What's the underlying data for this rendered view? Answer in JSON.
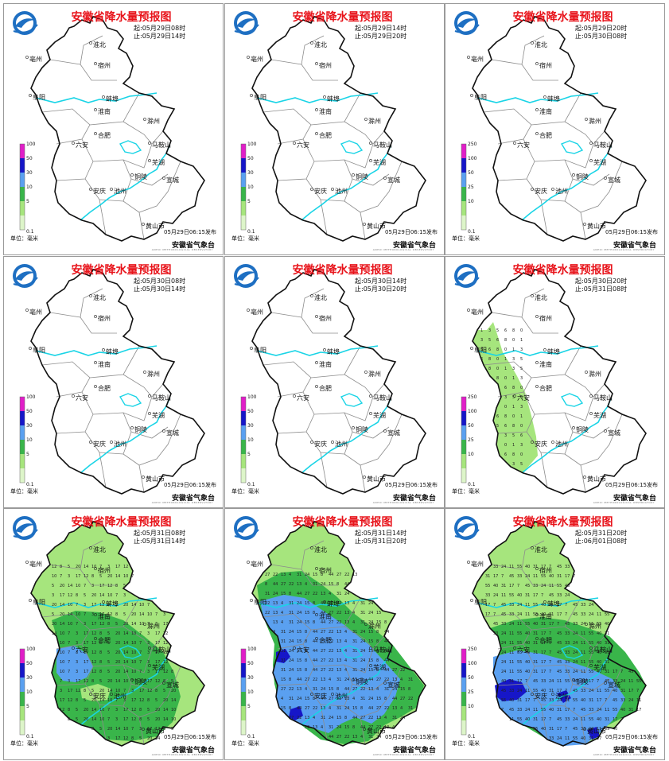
{
  "common": {
    "title": "安徽省降水量预报图",
    "start_prefix": "起:",
    "end_prefix": "止:",
    "issue": "05月29日06:15发布",
    "agency": "安徽省气象台",
    "agency_sub": "ANHUI METEOROLOGICAL OBSERVATORY",
    "unit": "单位：毫米",
    "cities": [
      "淮北",
      "亳州",
      "宿州",
      "阜阳",
      "蚌埠",
      "淮南",
      "滁州",
      "六安",
      "合肥",
      "马鞍山",
      "芜湖",
      "铜陵",
      "宣城",
      "安庆",
      "池州",
      "黄山市"
    ],
    "colors": {
      "title": "#e8141b",
      "river": "#19d4e6",
      "border": "#111111",
      "light_green": "#a6e57d",
      "green": "#39b54a",
      "blue": "#5aa0f0",
      "dark_blue": "#1616c8",
      "magenta": "#e01ec8"
    }
  },
  "panels": [
    {
      "start": "05月29日08时",
      "end": "05月29日14时",
      "legend": [
        "100",
        "50",
        "30",
        "10",
        "5",
        "0.1"
      ],
      "coverage": "none"
    },
    {
      "start": "05月29日14时",
      "end": "05月29日20时",
      "legend": [
        "100",
        "50",
        "30",
        "10",
        "5",
        "0.1"
      ],
      "coverage": "none"
    },
    {
      "start": "05月29日20时",
      "end": "05月30日08时",
      "legend": [
        "250",
        "100",
        "50",
        "25",
        "10",
        "0.1"
      ],
      "coverage": "none"
    },
    {
      "start": "05月30日08时",
      "end": "05月30日14时",
      "legend": [
        "100",
        "50",
        "30",
        "10",
        "5",
        "0.1"
      ],
      "coverage": "none"
    },
    {
      "start": "05月30日14时",
      "end": "05月30日20时",
      "legend": [
        "100",
        "50",
        "30",
        "10",
        "5",
        "0.1"
      ],
      "coverage": "none"
    },
    {
      "start": "05月30日20时",
      "end": "05月31日08时",
      "legend": [
        "250",
        "100",
        "50",
        "25",
        "10",
        "0.1"
      ],
      "coverage": "west_light"
    },
    {
      "start": "05月31日08时",
      "end": "05月31日14时",
      "legend": [
        "100",
        "50",
        "30",
        "10",
        "5",
        "0.1"
      ],
      "coverage": "green_wide"
    },
    {
      "start": "05月31日14时",
      "end": "05月31日20时",
      "legend": [
        "100",
        "50",
        "30",
        "10",
        "5",
        "0.1"
      ],
      "coverage": "blue_south"
    },
    {
      "start": "05月31日20时",
      "end": "06月01日08时",
      "legend": [
        "250",
        "100",
        "50",
        "25",
        "10",
        "0.1"
      ],
      "coverage": "blue_southwest"
    }
  ]
}
